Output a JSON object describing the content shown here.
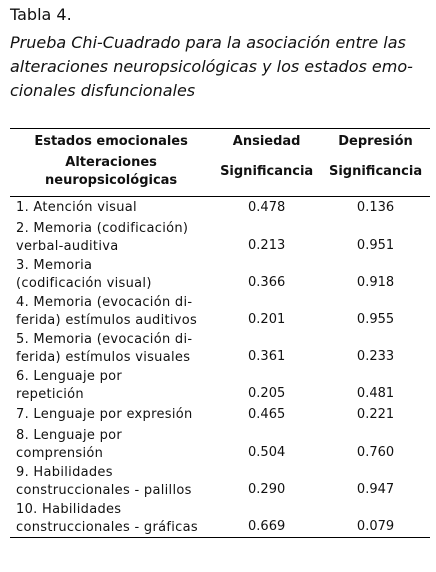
{
  "table_label": "Tabla 4.",
  "caption_lines": [
    "Prueba Chi-Cuadrado para la asociación entre las",
    "alteraciones neuropsicológicas y los estados emo-",
    "cionales disfuncionales"
  ],
  "header": {
    "row1": [
      "Estados emocionales",
      "Ansiedad",
      "Depresión"
    ],
    "row2_label_lines": [
      "Alteraciones",
      "neuropsicológicas"
    ],
    "row2": [
      "Significancia",
      "Significancia"
    ]
  },
  "rows": [
    {
      "label": [
        "1. Atención visual"
      ],
      "ansiedad": "0.478",
      "depresion": "0.136"
    },
    {
      "label": [
        "2. Memoria (codificación)",
        "verbal-auditiva"
      ],
      "ansiedad": "0.213",
      "depresion": "0.951"
    },
    {
      "label": [
        "3. Memoria",
        "(codificación visual)"
      ],
      "ansiedad": "0.366",
      "depresion": "0.918"
    },
    {
      "label": [
        "4. Memoria (evocación di-",
        "ferida) estímulos auditivos"
      ],
      "ansiedad": "0.201",
      "depresion": "0.955"
    },
    {
      "label": [
        "5. Memoria (evocación di-",
        "ferida) estímulos visuales"
      ],
      "ansiedad": "0.361",
      "depresion": "0.233"
    },
    {
      "label": [
        "6. Lenguaje por",
        "repetición"
      ],
      "ansiedad": "0.205",
      "depresion": "0.481"
    },
    {
      "label": [
        "7. Lenguaje por expresión"
      ],
      "ansiedad": "0.465",
      "depresion": "0.221"
    },
    {
      "label": [
        "8. Lenguaje por",
        "comprensión"
      ],
      "ansiedad": "0.504",
      "depresion": "0.760"
    },
    {
      "label": [
        "9. Habilidades",
        "construccionales - palillos"
      ],
      "ansiedad": "0.290",
      "depresion": "0.947"
    },
    {
      "label": [
        "10. Habilidades",
        "construccionales - gráficas"
      ],
      "ansiedad": "0.669",
      "depresion": "0.079"
    }
  ]
}
